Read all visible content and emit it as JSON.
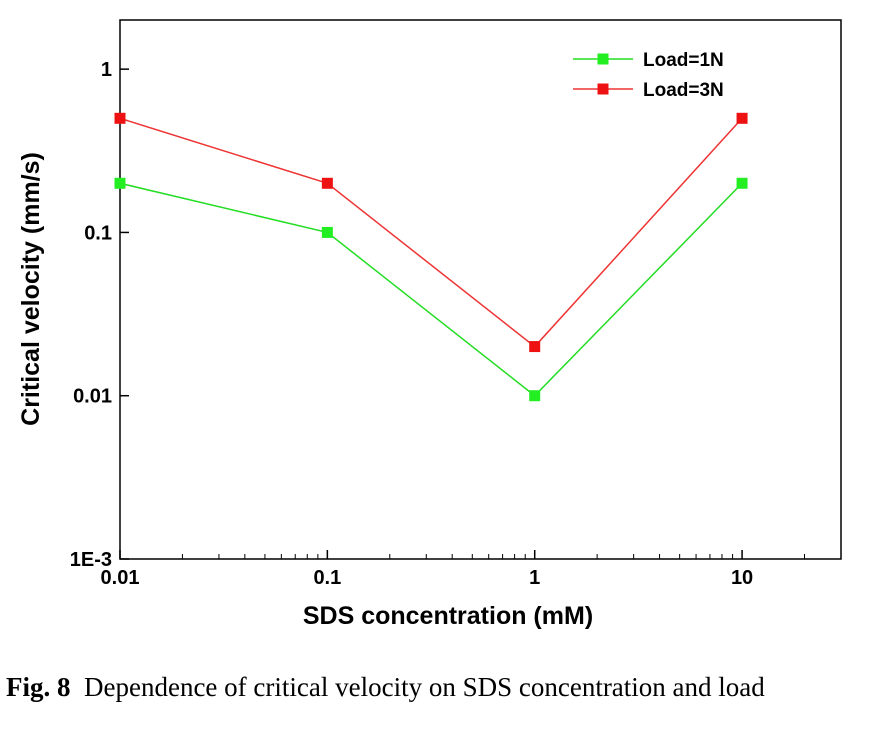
{
  "chart_data": {
    "type": "line",
    "xscale": "log",
    "yscale": "log",
    "x": [
      0.01,
      0.1,
      1,
      10
    ],
    "xlim": [
      0.01,
      30
    ],
    "ylim": [
      0.001,
      2
    ],
    "x_tick_labels": [
      "0.01",
      "0.1",
      "1",
      "10"
    ],
    "y_tick_labels": [
      "1E-3",
      "0.01",
      "0.1",
      "1"
    ],
    "xlabel": "SDS concentration (mM)",
    "ylabel": "Critical velocity (mm/s)",
    "legend_position": "top-right",
    "series": [
      {
        "name": "Load=1N",
        "values": [
          0.2,
          0.1,
          0.01,
          0.2
        ],
        "color": "#22dd22",
        "marker_color": "#22ee22"
      },
      {
        "name": "Load=3N",
        "values": [
          0.5,
          0.2,
          0.02,
          0.5
        ],
        "color": "#ee3333",
        "marker_color": "#ee1111"
      }
    ]
  },
  "caption": {
    "label": "Fig. 8",
    "text": "Dependence of critical velocity on SDS concentration and load"
  }
}
